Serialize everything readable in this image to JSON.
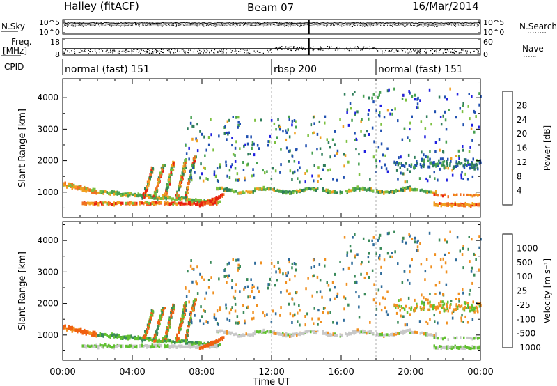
{
  "header": {
    "title": "Halley (fitACF)",
    "beam": "Beam 07",
    "date": "16/Mar/2014"
  },
  "panels": {
    "nsky_label": "N.Sky",
    "nsearch_label": "N.Search",
    "freq_label_line1": "Freq.",
    "freq_label_line2": "[MHz]",
    "nave_label": "Nave",
    "cpid_label": "CPID",
    "nsky_ticks": [
      "10^5",
      "10^0"
    ],
    "nsearch_ticks": [
      "10^5",
      "10^0"
    ],
    "freq_ticks": [
      "18",
      "8"
    ],
    "nave_ticks": [
      "60",
      "0"
    ]
  },
  "cpid_segments": [
    {
      "label": "normal (fast) 151",
      "start_h": 0,
      "end_h": 12
    },
    {
      "label": "rbsp 200",
      "start_h": 12,
      "end_h": 18
    },
    {
      "label": "normal (fast) 151",
      "start_h": 18,
      "end_h": 24
    }
  ],
  "xaxis": {
    "label": "Time UT",
    "ticks": [
      "00:00",
      "04:00",
      "08:00",
      "12:00",
      "16:00",
      "20:00",
      "00:00"
    ],
    "range_h": [
      0,
      24
    ]
  },
  "chart_data": [
    {
      "type": "heatmap",
      "name": "power",
      "ylabel": "Slant Range [km]",
      "ylim": [
        200,
        4600
      ],
      "yticks": [
        1000,
        2000,
        3000,
        4000
      ],
      "colorbar_label": "Power [dB]",
      "colorbar_ticks": [
        "28",
        "24",
        "20",
        "16",
        "12",
        "8",
        "4"
      ],
      "colors": [
        "#2020e0",
        "#2050b0",
        "#2e7d5a",
        "#46a050",
        "#7cc040",
        "#f0a020",
        "#f07020",
        "#e82010"
      ],
      "levels": [
        0,
        4,
        8,
        12,
        16,
        20,
        24,
        28,
        32
      ]
    },
    {
      "type": "heatmap",
      "name": "velocity",
      "ylabel": "Slant Range [km]",
      "ylim": [
        200,
        4600
      ],
      "yticks": [
        1000,
        2000,
        3000,
        4000
      ],
      "colorbar_label": "Velocity [m s⁻¹]",
      "colorbar_ticks": [
        "1000",
        "500",
        "100",
        "25",
        "-25",
        "-100",
        "-500",
        "-1000"
      ],
      "colors": [
        "#1e28c8",
        "#2e6b9a",
        "#3a8a5a",
        "#60c030",
        "#c8c8c8",
        "#f09020",
        "#f06010",
        "#e01010"
      ]
    }
  ]
}
